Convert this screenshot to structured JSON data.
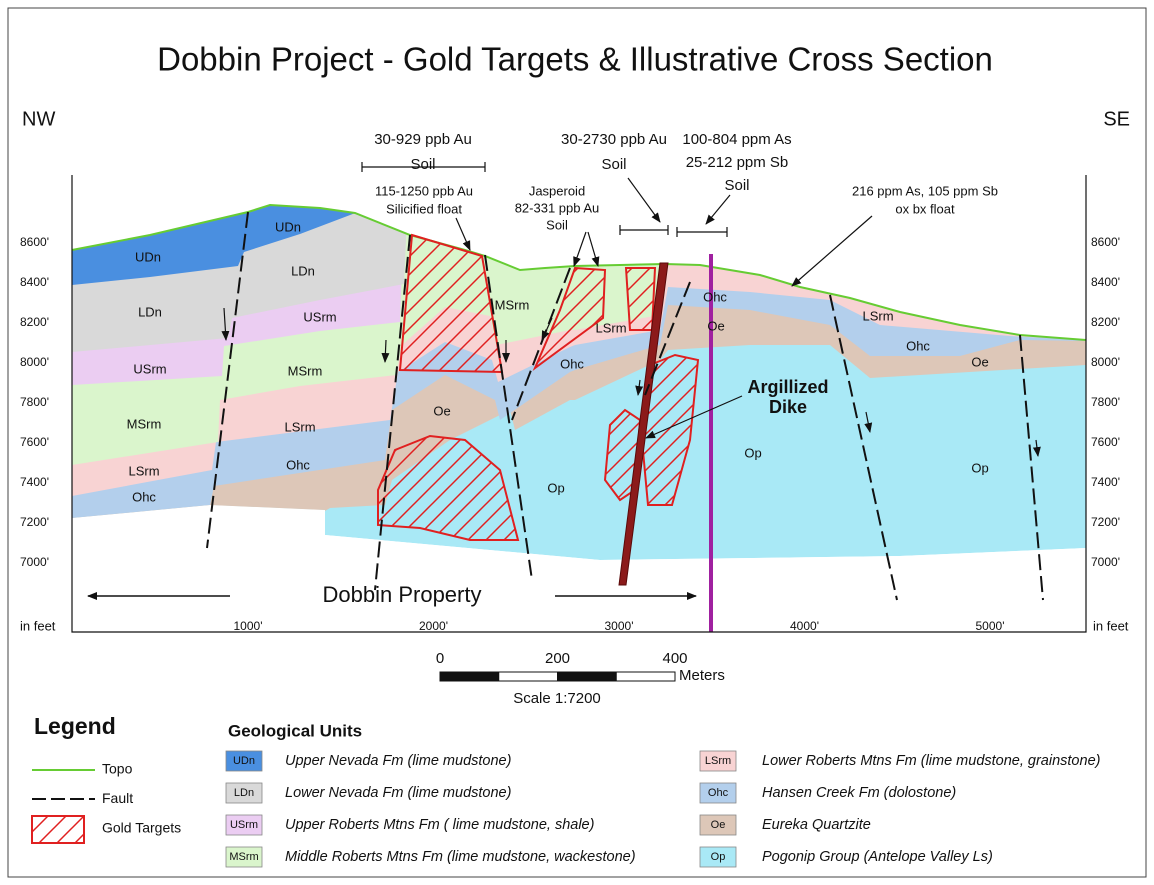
{
  "title": "Dobbin Project - Gold Targets & Illustrative Cross Section",
  "orientation": {
    "left": "NW",
    "right": "SE"
  },
  "elevation_labels": [
    "8600'",
    "8400'",
    "8200'",
    "8000'",
    "7800'",
    "7600'",
    "7400'",
    "7200'",
    "7000'"
  ],
  "distance_labels": [
    "1000'",
    "2000'",
    "3000'",
    "4000'",
    "5000'"
  ],
  "axis_units": "in feet",
  "annotations": [
    {
      "lines": [
        "30-929 ppb Au",
        "Soil"
      ]
    },
    {
      "lines": [
        "115-1250 ppb Au",
        "Silicified float"
      ]
    },
    {
      "lines": [
        "Jasperoid",
        "82-331 ppb Au",
        "Soil"
      ]
    },
    {
      "lines": [
        "30-2730 ppb Au",
        "Soil"
      ]
    },
    {
      "lines": [
        "100-804 ppm As",
        "25-212 ppm Sb",
        "Soil"
      ]
    },
    {
      "lines": [
        "216 ppm As, 105 ppm Sb",
        "ox bx float"
      ]
    },
    {
      "lines": [
        "Argillized",
        "Dike"
      ]
    }
  ],
  "unit_labels": [
    "UDn",
    "UDn",
    "LDn",
    "LDn",
    "USrm",
    "USrm",
    "MSrm",
    "MSrm",
    "LSrm",
    "LSrm",
    "Ohc",
    "Ohc",
    "MSrm",
    "LSrm",
    "Ohc",
    "Oe",
    "Op",
    "Op",
    "Op",
    "Ohc",
    "Oe",
    "LSrm",
    "Ohc",
    "Oe"
  ],
  "property": "Dobbin Property",
  "scale": {
    "ticks": [
      0,
      200,
      400
    ],
    "unit": "Meters",
    "label": "Scale 1:7200"
  },
  "legend": {
    "title": "Legend",
    "items": [
      "Topo",
      "Fault",
      "Gold Targets"
    ]
  },
  "units": {
    "title": "Geological Units",
    "items": [
      {
        "code": "UDn",
        "name": "Upper Nevada Fm (lime mudstone)",
        "color": "#4a8fe0"
      },
      {
        "code": "LDn",
        "name": "Lower Nevada Fm (lime mudstone)",
        "color": "#d9d9d9"
      },
      {
        "code": "USrm",
        "name": "Upper Roberts Mtns Fm ( lime mudstone, shale)",
        "color": "#ebcdf2"
      },
      {
        "code": "MSrm",
        "name": "Middle Roberts Mtns Fm (lime mudstone, wackestone)",
        "color": "#daf5cc"
      },
      {
        "code": "LSrm",
        "name": "Lower Roberts Mtns Fm (lime mudstone, grainstone)",
        "color": "#f8d3d3"
      },
      {
        "code": "Ohc",
        "name": "Hansen Creek Fm (dolostone)",
        "color": "#b3cfec"
      },
      {
        "code": "Oe",
        "name": "Eureka Quartzite",
        "color": "#ddc7b8"
      },
      {
        "code": "Op",
        "name": "Pogonip Group (Antelope Valley Ls)",
        "color": "#a9e9f6"
      }
    ]
  }
}
